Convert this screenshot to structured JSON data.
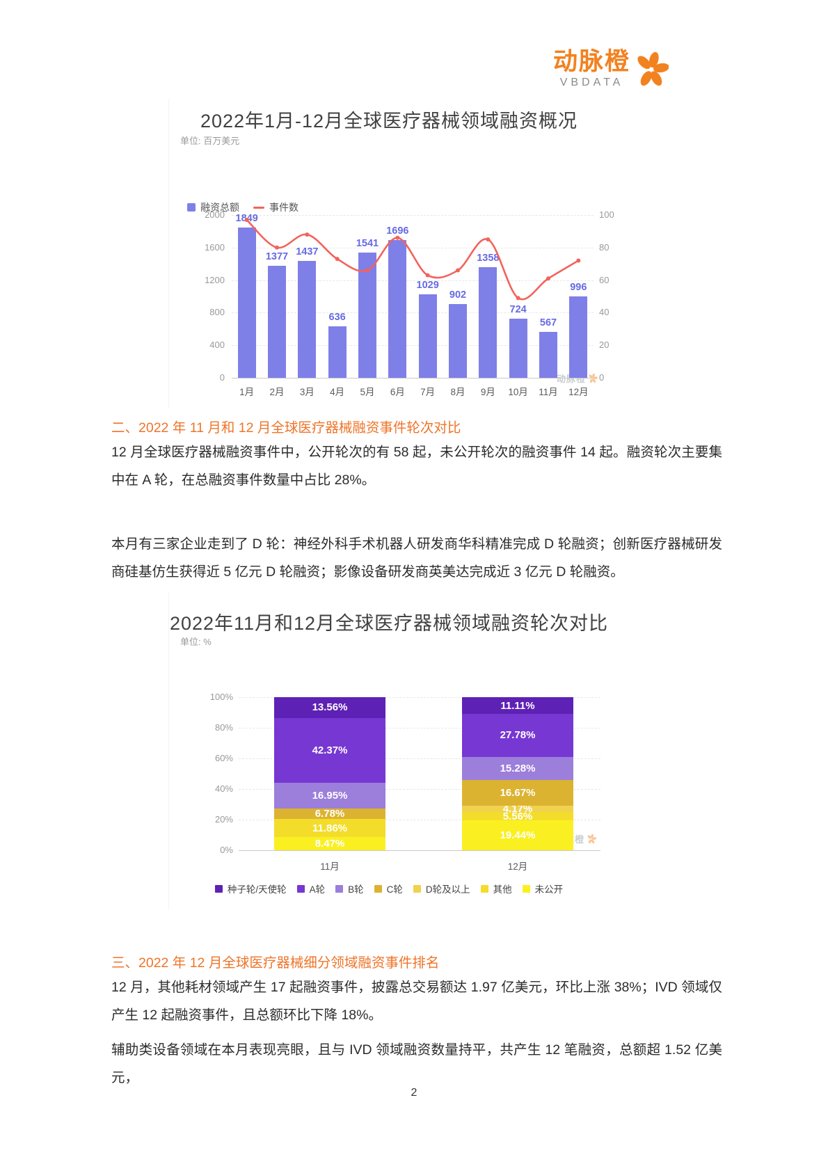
{
  "logo": {
    "name": "动脉橙",
    "sub": "VBDATA"
  },
  "watermark": "动脉橙",
  "page": {
    "number": "2"
  },
  "brand": {
    "orange": "#F28220",
    "heading_orange": "#EE7428"
  },
  "sections": {
    "s2": {
      "heading": "二、2022 年 11 月和 12 月全球医疗器械融资事件轮次对比",
      "p1": "12 月全球医疗器械融资事件中，公开轮次的有 58 起，未公开轮次的融资事件 14 起。融资轮次主要集中在 A 轮，在总融资事件数量中占比 28%。",
      "p2": "本月有三家企业走到了 D 轮：神经外科手术机器人研发商华科精准完成 D 轮融资；创新医疗器械研发商硅基仿生获得近 5 亿元 D 轮融资；影像设备研发商英美达完成近 3 亿元 D 轮融资。"
    },
    "s3": {
      "heading": "三、2022 年 12 月全球医疗器械细分领域融资事件排名",
      "p1": "12 月，其他耗材领域产生 17 起融资事件，披露总交易额达 1.97 亿美元，环比上涨 38%；IVD 领域仅产生 12 起融资事件，且总额环比下降 18%。",
      "p2": "辅助类设备领域在本月表现亮眼，且与 IVD 领域融资数量持平，共产生 12 笔融资，总额超 1.52 亿美元，"
    }
  },
  "chart_data": [
    {
      "type": "bar",
      "title": "2022年1月-12月全球医疗器械领域融资概况",
      "unit_label": "单位: 百万美元",
      "categories": [
        "1月",
        "2月",
        "3月",
        "4月",
        "5月",
        "6月",
        "7月",
        "8月",
        "9月",
        "10月",
        "11月",
        "12月"
      ],
      "series": [
        {
          "name": "融资总额",
          "type": "bar",
          "axis": "left",
          "color": "#7F7FE8",
          "label_color": "#666AE2",
          "values": [
            1849,
            1377,
            1437,
            636,
            1541,
            1696,
            1029,
            902,
            1358,
            724,
            567,
            996
          ]
        },
        {
          "name": "事件数",
          "type": "line",
          "axis": "right",
          "color": "#F2635C",
          "values": [
            97,
            80,
            88,
            73,
            66,
            86,
            63,
            66,
            85,
            49,
            61,
            72
          ]
        }
      ],
      "left_axis": {
        "min": 0,
        "max": 2000,
        "step": 400
      },
      "right_axis": {
        "min": 0,
        "max": 100,
        "step": 20
      },
      "grid": true,
      "legend_position": "top-left"
    },
    {
      "type": "bar",
      "subtype": "stacked-percent",
      "title": "2022年11月和12月全球医疗器械领域融资轮次对比",
      "unit_label": "单位: %",
      "categories": [
        "11月",
        "12月"
      ],
      "series": [
        {
          "name": "种子轮/天使轮",
          "color": "#5E21B5",
          "values": [
            13.56,
            11.11
          ]
        },
        {
          "name": "A轮",
          "color": "#7737D2",
          "values": [
            42.37,
            27.78
          ]
        },
        {
          "name": "B轮",
          "color": "#9C7EDB",
          "values": [
            16.95,
            15.28
          ]
        },
        {
          "name": "C轮",
          "color": "#DCB331",
          "values": [
            6.78,
            16.67
          ]
        },
        {
          "name": "D轮及以上",
          "color": "#F0D24E",
          "values": [
            0,
            4.17
          ]
        },
        {
          "name": "其他",
          "color": "#F3DD2A",
          "values": [
            11.86,
            5.56
          ]
        },
        {
          "name": "未公开",
          "color": "#FAF021",
          "values": [
            8.47,
            19.44
          ]
        }
      ],
      "y_axis": {
        "min": 0,
        "max": 100,
        "step": 20,
        "suffix": "%"
      },
      "grid": true,
      "legend_position": "bottom-center"
    }
  ]
}
